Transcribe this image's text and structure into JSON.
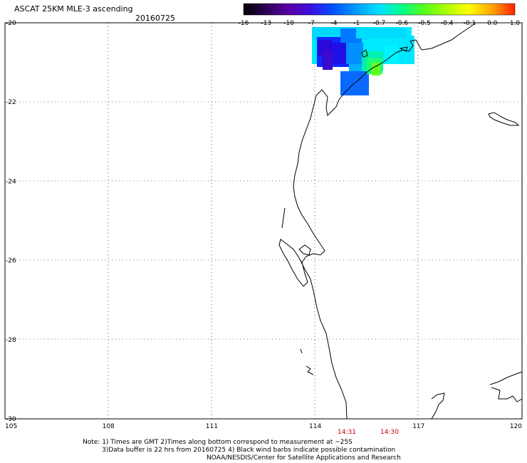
{
  "title": "ASCAT 25KM MLE-3 ascending",
  "date": "20160725",
  "colorbar": {
    "labels": [
      "-16",
      "-13",
      "-10",
      "-7",
      "-4",
      "-1",
      "-0.7",
      "-0.6",
      "-0.5",
      "-0.4",
      "-0.1",
      "0.0",
      "1.0"
    ],
    "colors": [
      "#000000",
      "#2a0050",
      "#5a00a8",
      "#3a10e0",
      "#0050ff",
      "#00a0ff",
      "#00e0ff",
      "#00ff90",
      "#50ff20",
      "#b0ff00",
      "#ffff00",
      "#ffa000",
      "#ff2000"
    ]
  },
  "axes": {
    "lat_labels": [
      "-20",
      "-22",
      "-24",
      "-26",
      "-28",
      "-30"
    ],
    "lon_labels": [
      "105",
      "108",
      "111",
      "114",
      "117",
      "120"
    ]
  },
  "times": [
    "14:31",
    "14:30"
  ],
  "notes": {
    "line1": "Note: 1) Times are GMT 2)Times along bottom correspond to measurement at ~25S",
    "line2": "3)Data buffer is 22 hrs from 20160725 4) Black wind barbs indicate possible contamination",
    "line3": "NOAA/NESDIS/Center for Satellite Applications and Research"
  }
}
